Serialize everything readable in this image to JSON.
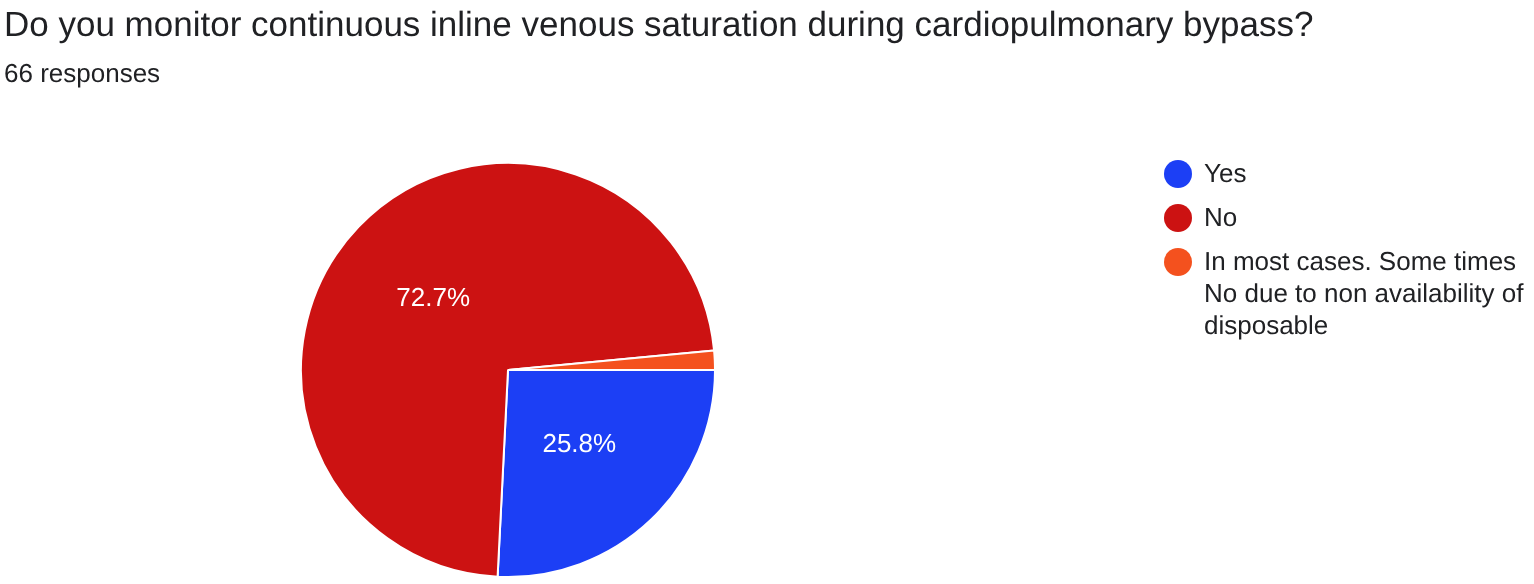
{
  "chart_data": {
    "type": "pie",
    "title": "Do you monitor continuous inline venous saturation during cardiopulmonary bypass?",
    "subtitle": "66 responses",
    "categories": [
      "Yes",
      "No",
      "In most cases. Some times No due to non availability of disposable"
    ],
    "values": [
      25.8,
      72.7,
      1.5
    ],
    "colors": [
      "#1c3ff5",
      "#cc1212",
      "#f4511e"
    ],
    "value_labels": [
      "25.8%",
      "72.7%",
      null
    ],
    "legend": "right"
  }
}
